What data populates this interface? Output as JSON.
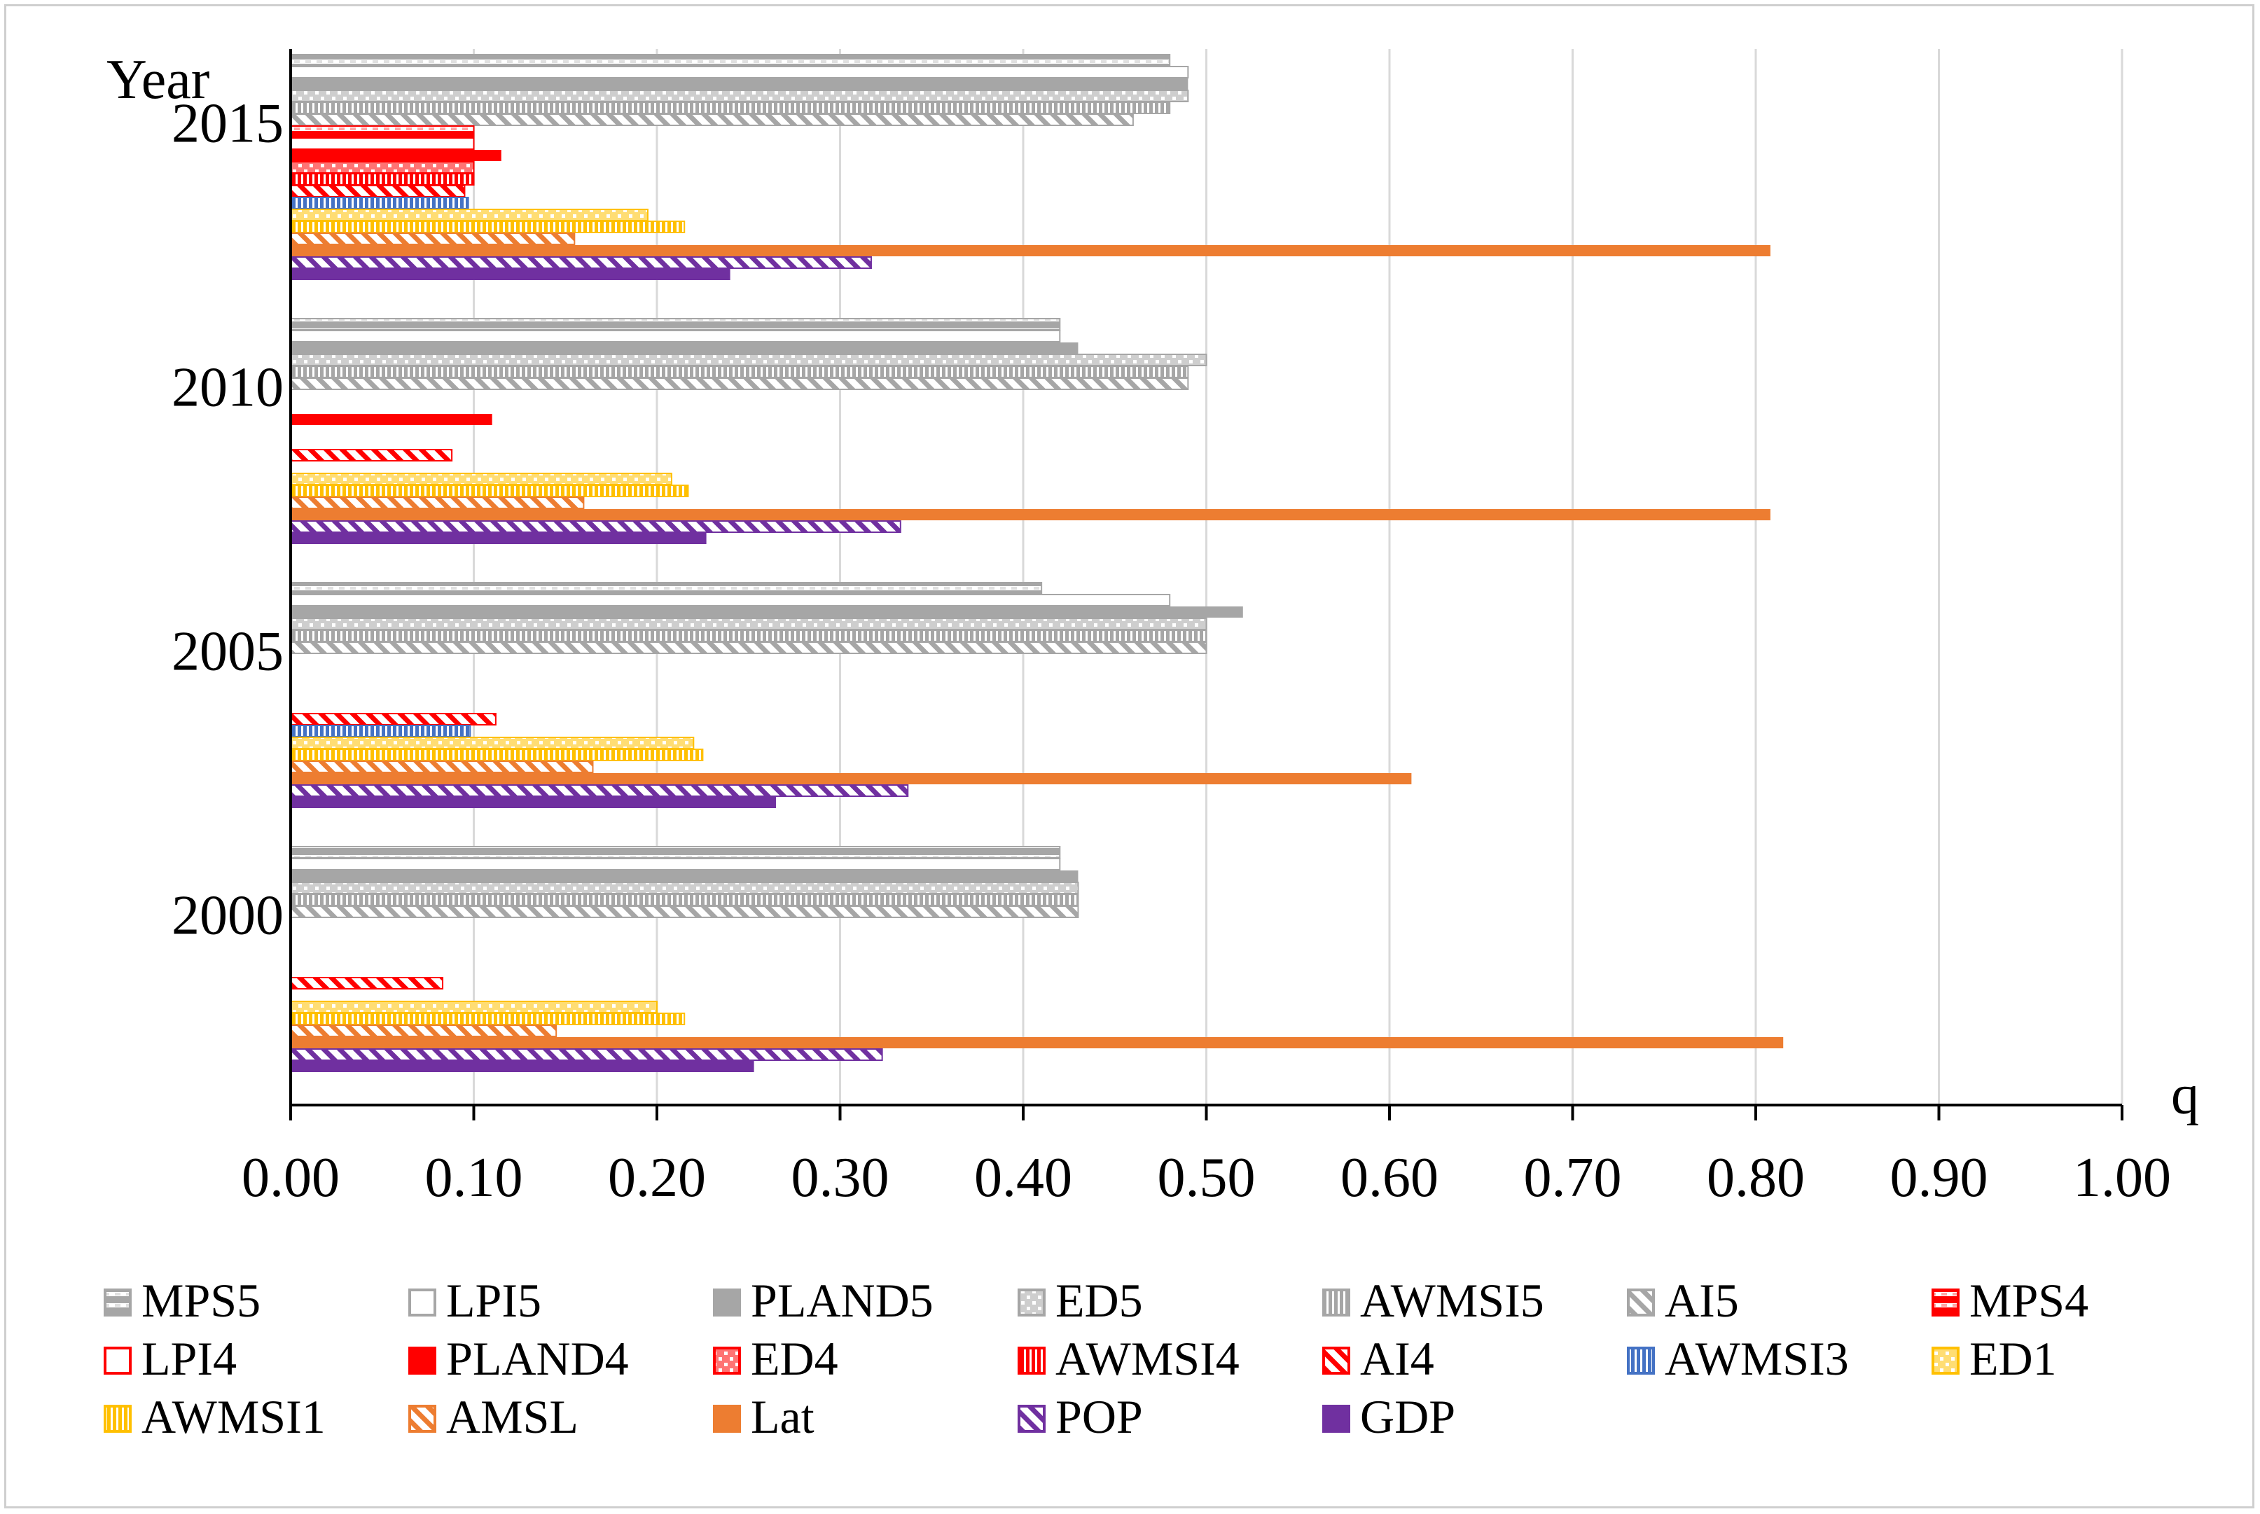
{
  "chart_data": {
    "type": "bar",
    "orientation": "horizontal",
    "title": "",
    "xlabel": "q",
    "ylabel": "Year",
    "xlim": [
      0,
      1.0
    ],
    "x_ticks": [
      "0.00",
      "0.10",
      "0.20",
      "0.30",
      "0.40",
      "0.50",
      "0.60",
      "0.70",
      "0.80",
      "0.90",
      "1.00"
    ],
    "grid": "vertical",
    "legend_position": "bottom",
    "categories": [
      "2015",
      "2010",
      "2005",
      "2000"
    ],
    "series": [
      {
        "name": "MPS5",
        "color": "#a6a6a6",
        "pattern": "hbar-gray",
        "values": [
          0.48,
          0.42,
          0.41,
          0.42
        ]
      },
      {
        "name": "LPI5",
        "color": "#a6a6a6",
        "pattern": "outline-gray",
        "values": [
          0.49,
          0.42,
          0.48,
          0.42
        ]
      },
      {
        "name": "PLAND5",
        "color": "#a6a6a6",
        "pattern": "solid-gray",
        "values": [
          0.49,
          0.43,
          0.52,
          0.43
        ]
      },
      {
        "name": "ED5",
        "color": "#a6a6a6",
        "pattern": "dots-gray",
        "values": [
          0.49,
          0.5,
          0.5,
          0.43
        ]
      },
      {
        "name": "AWMSI5",
        "color": "#a6a6a6",
        "pattern": "vbar-gray",
        "values": [
          0.48,
          0.49,
          0.5,
          0.43
        ]
      },
      {
        "name": "AI5",
        "color": "#a6a6a6",
        "pattern": "diag-gray",
        "values": [
          0.46,
          0.49,
          0.5,
          0.43
        ]
      },
      {
        "name": "MPS4",
        "color": "#ff0000",
        "pattern": "hbar-red",
        "values": [
          0.1,
          null,
          null,
          null
        ]
      },
      {
        "name": "LPI4",
        "color": "#ff0000",
        "pattern": "outline-red",
        "values": [
          0.1,
          null,
          null,
          null
        ]
      },
      {
        "name": "PLAND4",
        "color": "#ff0000",
        "pattern": "solid-red",
        "values": [
          0.115,
          0.11,
          null,
          null
        ]
      },
      {
        "name": "ED4",
        "color": "#ff0000",
        "pattern": "dots-red",
        "values": [
          0.1,
          null,
          null,
          null
        ]
      },
      {
        "name": "AWMSI4",
        "color": "#ff0000",
        "pattern": "vbar-red",
        "values": [
          0.1,
          null,
          null,
          null
        ]
      },
      {
        "name": "AI4",
        "color": "#ff0000",
        "pattern": "diag-red",
        "values": [
          0.095,
          0.088,
          0.112,
          0.083
        ]
      },
      {
        "name": "AWMSI3",
        "color": "#4472c4",
        "pattern": "vbar-blue",
        "values": [
          0.097,
          null,
          0.098,
          null
        ]
      },
      {
        "name": "ED1",
        "color": "#ffc000",
        "pattern": "dots-yellow",
        "values": [
          0.195,
          0.208,
          0.22,
          0.2
        ]
      },
      {
        "name": "AWMSI1",
        "color": "#ffc000",
        "pattern": "vbar-yellow",
        "values": [
          0.215,
          0.217,
          0.225,
          0.215
        ]
      },
      {
        "name": "AMSL",
        "color": "#ed7d31",
        "pattern": "diag-orange",
        "values": [
          0.155,
          0.16,
          0.165,
          0.145
        ]
      },
      {
        "name": "Lat",
        "color": "#ed7d31",
        "pattern": "solid-orange",
        "values": [
          0.808,
          0.808,
          0.612,
          0.815
        ]
      },
      {
        "name": "POP",
        "color": "#7030a0",
        "pattern": "diag-purple",
        "values": [
          0.317,
          0.333,
          0.337,
          0.323
        ]
      },
      {
        "name": "GDP",
        "color": "#7030a0",
        "pattern": "solid-purple",
        "values": [
          0.24,
          0.227,
          0.265,
          0.253
        ]
      }
    ]
  }
}
